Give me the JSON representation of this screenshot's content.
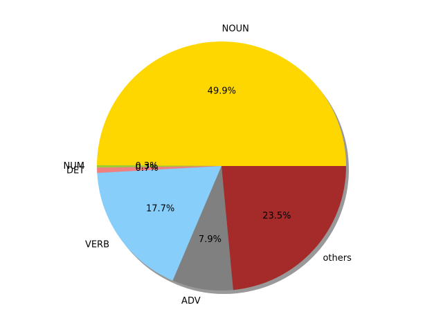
{
  "chart_data": {
    "type": "pie",
    "title": "",
    "shadow": true,
    "start_angle_deg": 0,
    "direction": "counterclockwise",
    "slices": [
      {
        "label": "NOUN",
        "value": 49.9,
        "pct_label": "49.9%",
        "color": "#FFD700"
      },
      {
        "label": "NUM",
        "value": 0.3,
        "pct_label": "0.3%",
        "color": "#9ACD32"
      },
      {
        "label": "DET",
        "value": 0.7,
        "pct_label": "0.7%",
        "color": "#F08080"
      },
      {
        "label": "VERB",
        "value": 17.7,
        "pct_label": "17.7%",
        "color": "#87CEFA"
      },
      {
        "label": "ADV",
        "value": 7.9,
        "pct_label": "7.9%",
        "color": "#808080"
      },
      {
        "label": "others",
        "value": 23.5,
        "pct_label": "23.5%",
        "color": "#A52A2A"
      }
    ]
  }
}
